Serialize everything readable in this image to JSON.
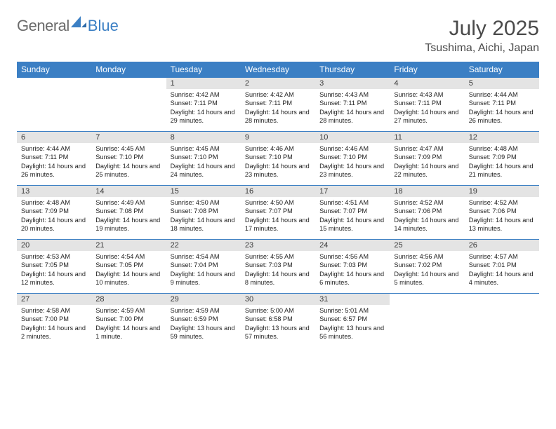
{
  "logo": {
    "gray": "General",
    "blue": "Blue"
  },
  "title": "July 2025",
  "location": "Tsushima, Aichi, Japan",
  "colors": {
    "header_bg": "#3b7fc4",
    "header_fg": "#ffffff",
    "daynum_bg": "#e4e4e4",
    "row_border": "#3b7fc4",
    "page_bg": "#ffffff"
  },
  "weekdays": [
    "Sunday",
    "Monday",
    "Tuesday",
    "Wednesday",
    "Thursday",
    "Friday",
    "Saturday"
  ],
  "weeks": [
    [
      {
        "n": "",
        "sr": "",
        "ss": "",
        "dl": ""
      },
      {
        "n": "",
        "sr": "",
        "ss": "",
        "dl": ""
      },
      {
        "n": "1",
        "sr": "Sunrise: 4:42 AM",
        "ss": "Sunset: 7:11 PM",
        "dl": "Daylight: 14 hours and 29 minutes."
      },
      {
        "n": "2",
        "sr": "Sunrise: 4:42 AM",
        "ss": "Sunset: 7:11 PM",
        "dl": "Daylight: 14 hours and 28 minutes."
      },
      {
        "n": "3",
        "sr": "Sunrise: 4:43 AM",
        "ss": "Sunset: 7:11 PM",
        "dl": "Daylight: 14 hours and 28 minutes."
      },
      {
        "n": "4",
        "sr": "Sunrise: 4:43 AM",
        "ss": "Sunset: 7:11 PM",
        "dl": "Daylight: 14 hours and 27 minutes."
      },
      {
        "n": "5",
        "sr": "Sunrise: 4:44 AM",
        "ss": "Sunset: 7:11 PM",
        "dl": "Daylight: 14 hours and 26 minutes."
      }
    ],
    [
      {
        "n": "6",
        "sr": "Sunrise: 4:44 AM",
        "ss": "Sunset: 7:11 PM",
        "dl": "Daylight: 14 hours and 26 minutes."
      },
      {
        "n": "7",
        "sr": "Sunrise: 4:45 AM",
        "ss": "Sunset: 7:10 PM",
        "dl": "Daylight: 14 hours and 25 minutes."
      },
      {
        "n": "8",
        "sr": "Sunrise: 4:45 AM",
        "ss": "Sunset: 7:10 PM",
        "dl": "Daylight: 14 hours and 24 minutes."
      },
      {
        "n": "9",
        "sr": "Sunrise: 4:46 AM",
        "ss": "Sunset: 7:10 PM",
        "dl": "Daylight: 14 hours and 23 minutes."
      },
      {
        "n": "10",
        "sr": "Sunrise: 4:46 AM",
        "ss": "Sunset: 7:10 PM",
        "dl": "Daylight: 14 hours and 23 minutes."
      },
      {
        "n": "11",
        "sr": "Sunrise: 4:47 AM",
        "ss": "Sunset: 7:09 PM",
        "dl": "Daylight: 14 hours and 22 minutes."
      },
      {
        "n": "12",
        "sr": "Sunrise: 4:48 AM",
        "ss": "Sunset: 7:09 PM",
        "dl": "Daylight: 14 hours and 21 minutes."
      }
    ],
    [
      {
        "n": "13",
        "sr": "Sunrise: 4:48 AM",
        "ss": "Sunset: 7:09 PM",
        "dl": "Daylight: 14 hours and 20 minutes."
      },
      {
        "n": "14",
        "sr": "Sunrise: 4:49 AM",
        "ss": "Sunset: 7:08 PM",
        "dl": "Daylight: 14 hours and 19 minutes."
      },
      {
        "n": "15",
        "sr": "Sunrise: 4:50 AM",
        "ss": "Sunset: 7:08 PM",
        "dl": "Daylight: 14 hours and 18 minutes."
      },
      {
        "n": "16",
        "sr": "Sunrise: 4:50 AM",
        "ss": "Sunset: 7:07 PM",
        "dl": "Daylight: 14 hours and 17 minutes."
      },
      {
        "n": "17",
        "sr": "Sunrise: 4:51 AM",
        "ss": "Sunset: 7:07 PM",
        "dl": "Daylight: 14 hours and 15 minutes."
      },
      {
        "n": "18",
        "sr": "Sunrise: 4:52 AM",
        "ss": "Sunset: 7:06 PM",
        "dl": "Daylight: 14 hours and 14 minutes."
      },
      {
        "n": "19",
        "sr": "Sunrise: 4:52 AM",
        "ss": "Sunset: 7:06 PM",
        "dl": "Daylight: 14 hours and 13 minutes."
      }
    ],
    [
      {
        "n": "20",
        "sr": "Sunrise: 4:53 AM",
        "ss": "Sunset: 7:05 PM",
        "dl": "Daylight: 14 hours and 12 minutes."
      },
      {
        "n": "21",
        "sr": "Sunrise: 4:54 AM",
        "ss": "Sunset: 7:05 PM",
        "dl": "Daylight: 14 hours and 10 minutes."
      },
      {
        "n": "22",
        "sr": "Sunrise: 4:54 AM",
        "ss": "Sunset: 7:04 PM",
        "dl": "Daylight: 14 hours and 9 minutes."
      },
      {
        "n": "23",
        "sr": "Sunrise: 4:55 AM",
        "ss": "Sunset: 7:03 PM",
        "dl": "Daylight: 14 hours and 8 minutes."
      },
      {
        "n": "24",
        "sr": "Sunrise: 4:56 AM",
        "ss": "Sunset: 7:03 PM",
        "dl": "Daylight: 14 hours and 6 minutes."
      },
      {
        "n": "25",
        "sr": "Sunrise: 4:56 AM",
        "ss": "Sunset: 7:02 PM",
        "dl": "Daylight: 14 hours and 5 minutes."
      },
      {
        "n": "26",
        "sr": "Sunrise: 4:57 AM",
        "ss": "Sunset: 7:01 PM",
        "dl": "Daylight: 14 hours and 4 minutes."
      }
    ],
    [
      {
        "n": "27",
        "sr": "Sunrise: 4:58 AM",
        "ss": "Sunset: 7:00 PM",
        "dl": "Daylight: 14 hours and 2 minutes."
      },
      {
        "n": "28",
        "sr": "Sunrise: 4:59 AM",
        "ss": "Sunset: 7:00 PM",
        "dl": "Daylight: 14 hours and 1 minute."
      },
      {
        "n": "29",
        "sr": "Sunrise: 4:59 AM",
        "ss": "Sunset: 6:59 PM",
        "dl": "Daylight: 13 hours and 59 minutes."
      },
      {
        "n": "30",
        "sr": "Sunrise: 5:00 AM",
        "ss": "Sunset: 6:58 PM",
        "dl": "Daylight: 13 hours and 57 minutes."
      },
      {
        "n": "31",
        "sr": "Sunrise: 5:01 AM",
        "ss": "Sunset: 6:57 PM",
        "dl": "Daylight: 13 hours and 56 minutes."
      },
      {
        "n": "",
        "sr": "",
        "ss": "",
        "dl": ""
      },
      {
        "n": "",
        "sr": "",
        "ss": "",
        "dl": ""
      }
    ]
  ]
}
